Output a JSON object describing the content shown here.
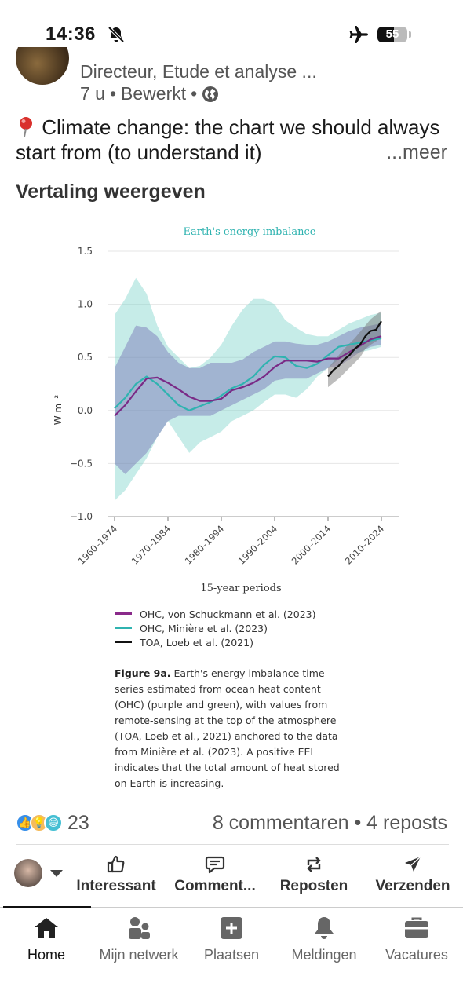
{
  "status": {
    "time": "14:36",
    "battery": "55",
    "battery_level": 0.55
  },
  "post": {
    "author_subtitle": "Directeur, Etude et analyse ...",
    "age": "7 u",
    "edited": "Bewerkt",
    "sep": "•",
    "text": "Climate change: the chart we should always start from (to understand it)",
    "more": "...meer",
    "translate": "Vertaling weergeven"
  },
  "figure": {
    "legend": [
      {
        "label": "OHC, von Schuckmann et al. (2023)",
        "color": "#8a2a8a"
      },
      {
        "label": "OHC, Minière et al. (2023)",
        "color": "#2fb3b0"
      },
      {
        "label": "TOA, Loeb et al. (2021)",
        "color": "#111111"
      }
    ],
    "caption_title": "Figure 9a.",
    "caption_text": "Earth's energy imbalance time series estimated from ocean heat content (OHC) (purple and green), with values from remote-sensing at the top of the atmosphere (TOA, Loeb et al., 2021) anchored to the data from Minière et al. (2023). A positive EEI indicates that the total amount of heat stored on Earth is increasing."
  },
  "chart_data": {
    "type": "line",
    "title": "Earth's energy imbalance",
    "xlabel": "15-year periods",
    "ylabel": "W m⁻²",
    "ylim": [
      -1.0,
      1.5
    ],
    "yticks": [
      "1.5",
      "1.0",
      "0.5",
      "0.0",
      "−0.5",
      "−1.0"
    ],
    "ytick_values": [
      1.5,
      1.0,
      0.5,
      0.0,
      -0.5,
      -1.0
    ],
    "xlim": [
      1960,
      2010
    ],
    "xticks": [
      "1960–1974",
      "1970–1984",
      "1980–1994",
      "1990–2004",
      "2000–2014",
      "2010–2024"
    ],
    "xtick_values": [
      1960,
      1970,
      1980,
      1990,
      2000,
      2010
    ],
    "grid": true,
    "series": [
      {
        "name": "OHC, von Schuckmann et al. (2023)",
        "color": "#7a2a86",
        "x": [
          1960,
          1962,
          1964,
          1966,
          1968,
          1970,
          1972,
          1974,
          1976,
          1978,
          1980,
          1982,
          1984,
          1986,
          1988,
          1990,
          1992,
          1994,
          1996,
          1998,
          2000,
          2002,
          2004,
          2006,
          2008,
          2010
        ],
        "y": [
          -0.05,
          0.05,
          0.18,
          0.3,
          0.31,
          0.26,
          0.2,
          0.13,
          0.09,
          0.09,
          0.11,
          0.19,
          0.22,
          0.26,
          0.32,
          0.41,
          0.47,
          0.47,
          0.47,
          0.46,
          0.49,
          0.49,
          0.55,
          0.61,
          0.67,
          0.7
        ],
        "lower": [
          -0.5,
          -0.6,
          -0.5,
          -0.4,
          -0.25,
          -0.1,
          -0.05,
          -0.05,
          -0.05,
          -0.05,
          0.0,
          0.05,
          0.1,
          0.15,
          0.2,
          0.28,
          0.3,
          0.3,
          0.3,
          0.35,
          0.4,
          0.42,
          0.48,
          0.55,
          0.6,
          0.62
        ],
        "upper": [
          0.4,
          0.6,
          0.8,
          0.78,
          0.7,
          0.55,
          0.45,
          0.4,
          0.4,
          0.45,
          0.45,
          0.45,
          0.48,
          0.55,
          0.6,
          0.65,
          0.65,
          0.63,
          0.62,
          0.62,
          0.65,
          0.7,
          0.75,
          0.78,
          0.8,
          0.82
        ]
      },
      {
        "name": "OHC, Minière et al. (2023)",
        "color": "#2fb3b0",
        "x": [
          1960,
          1962,
          1964,
          1966,
          1968,
          1970,
          1972,
          1974,
          1976,
          1978,
          1980,
          1982,
          1984,
          1986,
          1988,
          1990,
          1992,
          1994,
          1996,
          1998,
          2000,
          2002,
          2004,
          2006,
          2008,
          2010
        ],
        "y": [
          0.02,
          0.12,
          0.25,
          0.32,
          0.25,
          0.15,
          0.05,
          0.0,
          0.04,
          0.08,
          0.14,
          0.21,
          0.25,
          0.32,
          0.43,
          0.51,
          0.5,
          0.42,
          0.4,
          0.44,
          0.52,
          0.6,
          0.62,
          0.64,
          0.66,
          0.68
        ],
        "lower": [
          -0.85,
          -0.75,
          -0.6,
          -0.45,
          -0.25,
          -0.1,
          -0.25,
          -0.4,
          -0.3,
          -0.25,
          -0.2,
          -0.1,
          -0.05,
          0.0,
          0.08,
          0.15,
          0.15,
          0.12,
          0.2,
          0.32,
          0.4,
          0.48,
          0.52,
          0.55,
          0.57,
          0.6
        ],
        "upper": [
          0.9,
          1.05,
          1.25,
          1.1,
          0.8,
          0.6,
          0.5,
          0.4,
          0.42,
          0.5,
          0.62,
          0.8,
          0.95,
          1.05,
          1.05,
          1.0,
          0.85,
          0.78,
          0.72,
          0.7,
          0.7,
          0.76,
          0.82,
          0.86,
          0.9,
          0.92
        ]
      },
      {
        "name": "TOA, Loeb et al. (2021)",
        "color": "#111111",
        "x": [
          2000,
          2001,
          2002,
          2003,
          2004,
          2005,
          2006,
          2007,
          2008,
          2009,
          2010
        ],
        "y": [
          0.32,
          0.38,
          0.42,
          0.48,
          0.52,
          0.58,
          0.62,
          0.7,
          0.75,
          0.76,
          0.84
        ],
        "lower": [
          0.22,
          0.26,
          0.3,
          0.35,
          0.4,
          0.45,
          0.5,
          0.58,
          0.62,
          0.65,
          0.7
        ],
        "upper": [
          0.4,
          0.46,
          0.52,
          0.58,
          0.63,
          0.68,
          0.74,
          0.8,
          0.86,
          0.9,
          0.94
        ]
      }
    ]
  },
  "engagement": {
    "count": "23",
    "comments_reposts": "8 commentaren • 4 reposts"
  },
  "actions": [
    {
      "label": "Interessant",
      "icon": "thumbs-up-icon"
    },
    {
      "label": "Comment...",
      "icon": "comment-icon"
    },
    {
      "label": "Reposten",
      "icon": "repost-icon"
    },
    {
      "label": "Verzenden",
      "icon": "send-icon"
    }
  ],
  "tabs": [
    {
      "label": "Home",
      "icon": "home-icon"
    },
    {
      "label": "Mijn netwerk",
      "icon": "network-icon"
    },
    {
      "label": "Plaatsen",
      "icon": "post-icon"
    },
    {
      "label": "Meldingen",
      "icon": "bell-icon"
    },
    {
      "label": "Vacatures",
      "icon": "briefcase-icon"
    }
  ]
}
